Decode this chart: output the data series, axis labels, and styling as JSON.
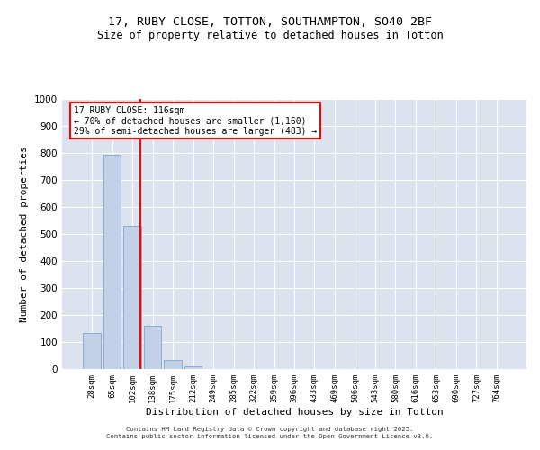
{
  "title_line1": "17, RUBY CLOSE, TOTTON, SOUTHAMPTON, SO40 2BF",
  "title_line2": "Size of property relative to detached houses in Totton",
  "xlabel": "Distribution of detached houses by size in Totton",
  "ylabel": "Number of detached properties",
  "background_color": "#dce3ef",
  "bar_color": "#c2d0e8",
  "bar_edge_color": "#8aadd4",
  "categories": [
    "28sqm",
    "65sqm",
    "102sqm",
    "138sqm",
    "175sqm",
    "212sqm",
    "249sqm",
    "285sqm",
    "322sqm",
    "359sqm",
    "396sqm",
    "433sqm",
    "469sqm",
    "506sqm",
    "543sqm",
    "580sqm",
    "616sqm",
    "653sqm",
    "690sqm",
    "727sqm",
    "764sqm"
  ],
  "values": [
    135,
    795,
    530,
    160,
    35,
    10,
    0,
    0,
    0,
    0,
    0,
    0,
    0,
    0,
    0,
    0,
    0,
    0,
    0,
    0,
    0
  ],
  "ylim": [
    0,
    1000
  ],
  "yticks": [
    0,
    100,
    200,
    300,
    400,
    500,
    600,
    700,
    800,
    900,
    1000
  ],
  "red_line_x": 2.42,
  "annotation_text": "17 RUBY CLOSE: 116sqm\n← 70% of detached houses are smaller (1,160)\n29% of semi-detached houses are larger (483) →",
  "footer_line1": "Contains HM Land Registry data © Crown copyright and database right 2025.",
  "footer_line2": "Contains public sector information licensed under the Open Government Licence v3.0."
}
